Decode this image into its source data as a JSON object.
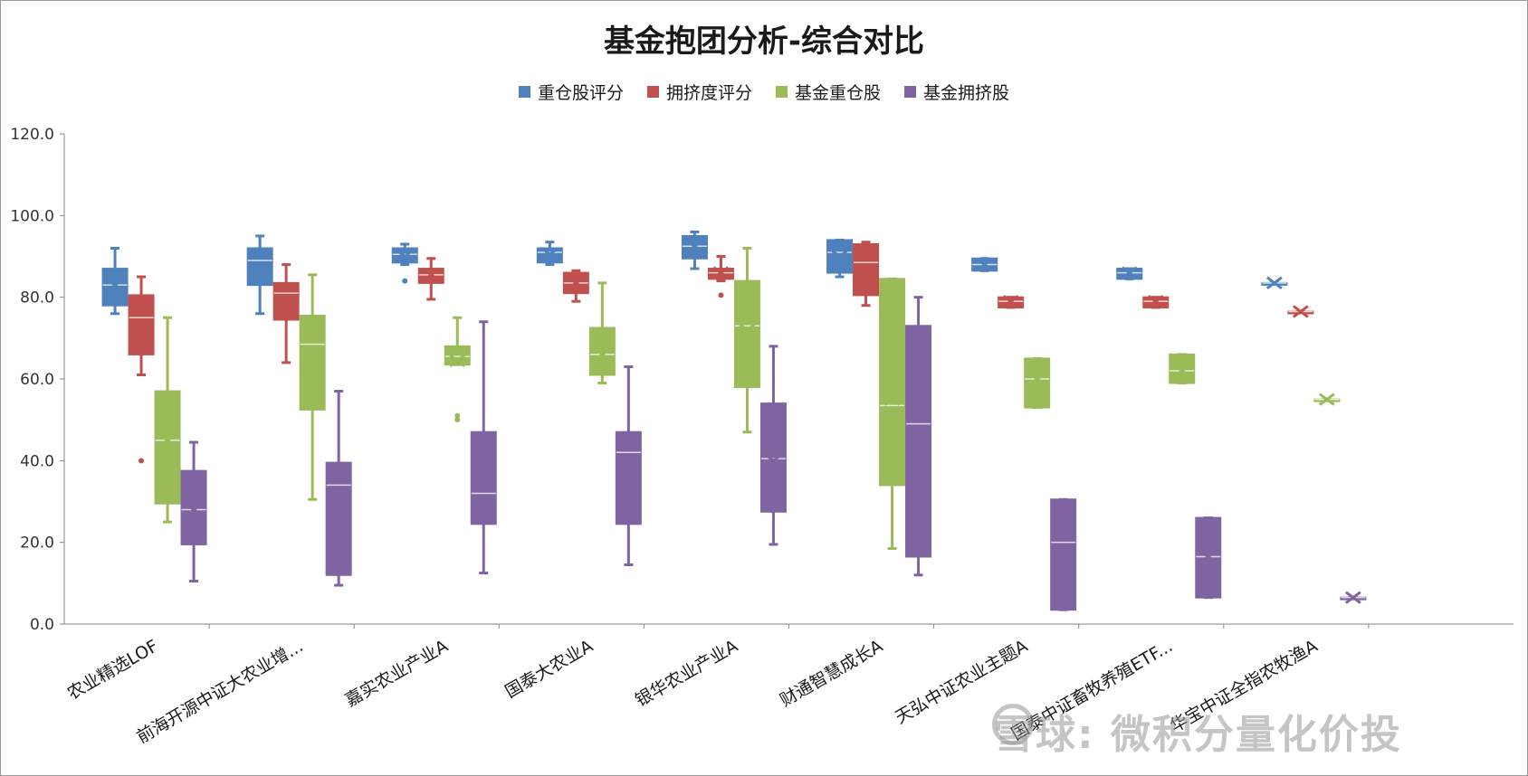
{
  "chart_data": {
    "type": "box",
    "title": "基金抱团分析-综合对比",
    "xlabel": "",
    "ylabel": "",
    "ylim": [
      0,
      120
    ],
    "y_ticks": [
      "0.0",
      "20.0",
      "40.0",
      "60.0",
      "80.0",
      "100.0",
      "120.0"
    ],
    "legend_position": "top",
    "categories": [
      "农业精选LOF",
      "前海开源中证大农业增...",
      "嘉实农业产业A",
      "国泰大农业A",
      "银华农业产业A",
      "财通智慧成长A",
      "天弘中证农业主题A",
      "国泰中证畜牧养殖ETF...",
      "华宝中证全指农牧渔A"
    ],
    "series": [
      {
        "name": "重仓股评分",
        "color": "#4f81bd",
        "boxes": [
          {
            "min": 76,
            "q1": 78,
            "median": 83,
            "mean": 83,
            "q3": 87,
            "max": 92,
            "outliers": []
          },
          {
            "min": 76,
            "q1": 83,
            "median": 89,
            "mean": 87,
            "q3": 92,
            "max": 95,
            "outliers": []
          },
          {
            "min": 88,
            "q1": 88.5,
            "median": 90.5,
            "mean": 90,
            "q3": 92,
            "max": 93,
            "outliers": [
              84
            ]
          },
          {
            "min": 88,
            "q1": 88.5,
            "median": 91,
            "mean": 90.5,
            "q3": 92,
            "max": 93.5,
            "outliers": []
          },
          {
            "min": 87,
            "q1": 89.5,
            "median": 92.5,
            "mean": 92.5,
            "q3": 95,
            "max": 96,
            "outliers": []
          },
          {
            "min": 85,
            "q1": 86,
            "median": 91,
            "mean": 90,
            "q3": 94,
            "max": 94,
            "outliers": []
          },
          {
            "min": 86.5,
            "q1": 86.5,
            "median": 88,
            "mean": 88,
            "q3": 89.5,
            "max": 89.5,
            "outliers": []
          },
          {
            "min": 84.5,
            "q1": 84.5,
            "median": 86,
            "mean": 86,
            "q3": 87,
            "max": 87,
            "outliers": []
          },
          {
            "min": 83.5,
            "q1": 83.5,
            "median": 83.5,
            "mean": 83.5,
            "q3": 83.5,
            "max": 83.5,
            "outliers": []
          }
        ]
      },
      {
        "name": "拥挤度评分",
        "color": "#c0504d",
        "boxes": [
          {
            "min": 61,
            "q1": 66,
            "median": 75,
            "mean": 72,
            "q3": 80.5,
            "max": 85,
            "outliers": [
              40
            ]
          },
          {
            "min": 64,
            "q1": 74.5,
            "median": 81,
            "mean": 79,
            "q3": 83.5,
            "max": 88,
            "outliers": []
          },
          {
            "min": 79.5,
            "q1": 83.5,
            "median": 85.5,
            "mean": 85.5,
            "q3": 87,
            "max": 89.5,
            "outliers": []
          },
          {
            "min": 79,
            "q1": 81,
            "median": 83.5,
            "mean": 83.5,
            "q3": 86,
            "max": 86.5,
            "outliers": []
          },
          {
            "min": 84,
            "q1": 84.5,
            "median": 86,
            "mean": 86,
            "q3": 87,
            "max": 90,
            "outliers": [
              80.5
            ]
          },
          {
            "min": 78,
            "q1": 80.5,
            "median": 88.5,
            "mean": 86,
            "q3": 93,
            "max": 93.5,
            "outliers": []
          },
          {
            "min": 77.5,
            "q1": 77.5,
            "median": 79,
            "mean": 79,
            "q3": 80,
            "max": 80,
            "outliers": []
          },
          {
            "min": 77.5,
            "q1": 77.5,
            "median": 79,
            "mean": 79,
            "q3": 80,
            "max": 80,
            "outliers": []
          },
          {
            "min": 76.5,
            "q1": 76.5,
            "median": 76.5,
            "mean": 76.5,
            "q3": 76.5,
            "max": 76.5,
            "outliers": []
          }
        ]
      },
      {
        "name": "基金重仓股",
        "color": "#9bbb59",
        "boxes": [
          {
            "min": 25,
            "q1": 29.5,
            "median": 45,
            "mean": 45,
            "q3": 57,
            "max": 75,
            "outliers": []
          },
          {
            "min": 30.5,
            "q1": 52.5,
            "median": 68.5,
            "mean": 63,
            "q3": 75.5,
            "max": 85.5,
            "outliers": []
          },
          {
            "min": 63.5,
            "q1": 63.5,
            "median": 65.5,
            "mean": 64.5,
            "q3": 68,
            "max": 75,
            "outliers": [
              51,
              50
            ]
          },
          {
            "min": 59,
            "q1": 61,
            "median": 66,
            "mean": 66,
            "q3": 72.5,
            "max": 83.5,
            "outliers": []
          },
          {
            "min": 47,
            "q1": 58,
            "median": 73,
            "mean": 72,
            "q3": 84,
            "max": 92,
            "outliers": []
          },
          {
            "min": 18.5,
            "q1": 34,
            "median": 53.5,
            "mean": 55,
            "q3": 84.5,
            "max": 84.5,
            "outliers": []
          },
          {
            "min": 53,
            "q1": 53,
            "median": 60,
            "mean": 60,
            "q3": 65,
            "max": 65,
            "outliers": []
          },
          {
            "min": 59,
            "q1": 59,
            "median": 62,
            "mean": 62,
            "q3": 66,
            "max": 66,
            "outliers": []
          },
          {
            "min": 55,
            "q1": 55,
            "median": 55,
            "mean": 55,
            "q3": 55,
            "max": 55,
            "outliers": []
          }
        ]
      },
      {
        "name": "基金拥挤股",
        "color": "#8064a2",
        "boxes": [
          {
            "min": 10.5,
            "q1": 19.5,
            "median": 28,
            "mean": 28,
            "q3": 37.5,
            "max": 44.5,
            "outliers": []
          },
          {
            "min": 9.5,
            "q1": 12,
            "median": 34,
            "mean": 30,
            "q3": 39.5,
            "max": 57,
            "outliers": []
          },
          {
            "min": 12.5,
            "q1": 24.5,
            "median": 32,
            "mean": 34,
            "q3": 47,
            "max": 74,
            "outliers": []
          },
          {
            "min": 14.5,
            "q1": 24.5,
            "median": 42,
            "mean": 40,
            "q3": 47,
            "max": 63,
            "outliers": []
          },
          {
            "min": 19.5,
            "q1": 27.5,
            "median": 40.5,
            "mean": 40,
            "q3": 54,
            "max": 68,
            "outliers": []
          },
          {
            "min": 12,
            "q1": 16.5,
            "median": 49,
            "mean": 47,
            "q3": 73,
            "max": 80,
            "outliers": []
          },
          {
            "min": 3.5,
            "q1": 3.5,
            "median": 20,
            "mean": 18,
            "q3": 30.5,
            "max": 30.5,
            "outliers": []
          },
          {
            "min": 6.5,
            "q1": 6.5,
            "median": 16.5,
            "mean": 16.5,
            "q3": 26,
            "max": 26,
            "outliers": []
          },
          {
            "min": 6.5,
            "q1": 6.5,
            "median": 6.5,
            "mean": 6.5,
            "q3": 6.5,
            "max": 6.5,
            "outliers": []
          }
        ]
      }
    ]
  },
  "watermark": {
    "text": "雪球: 微积分量化价投"
  }
}
